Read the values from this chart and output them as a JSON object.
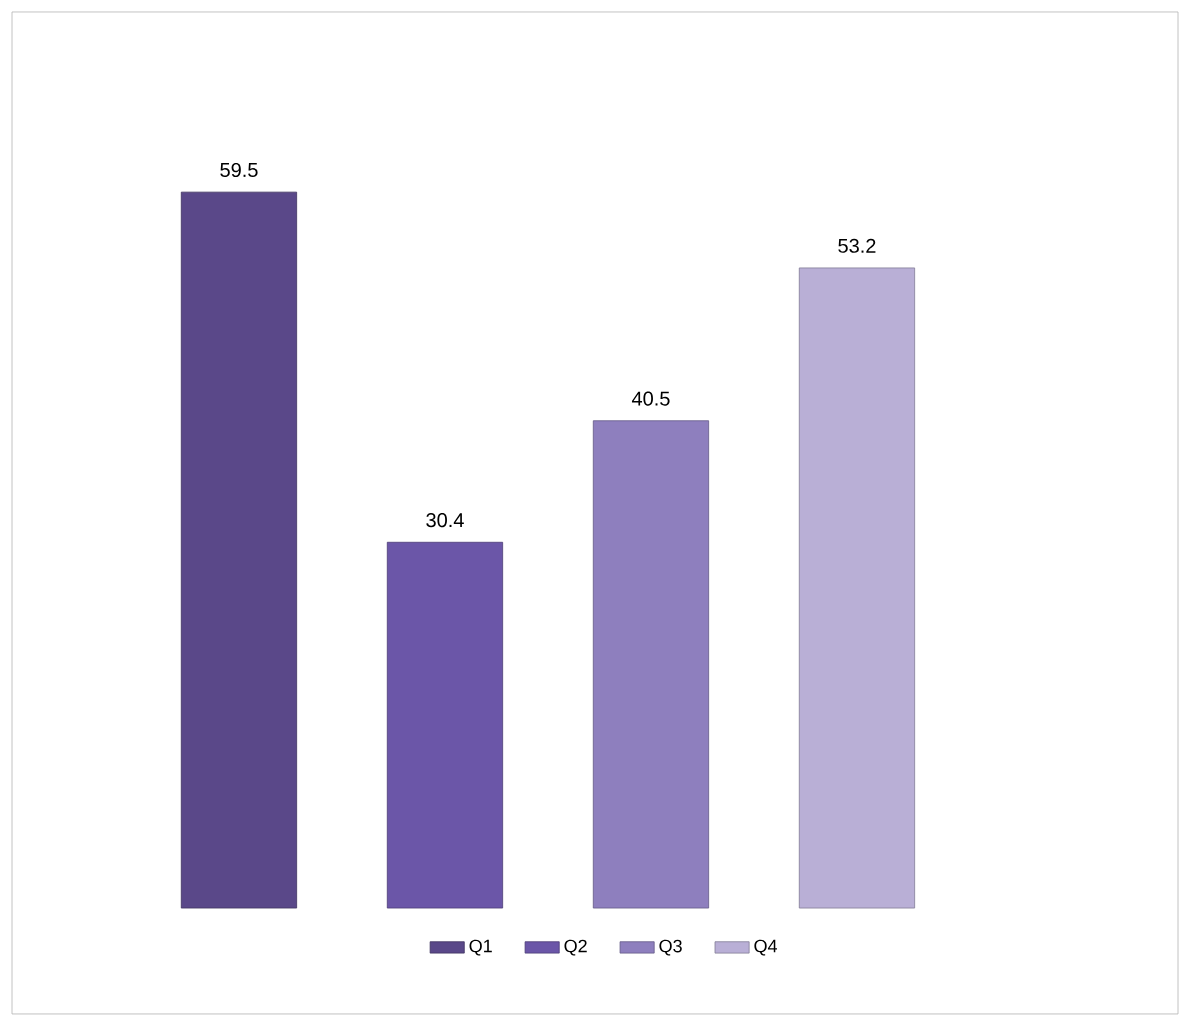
{
  "chart_data": {
    "type": "bar",
    "categories": [
      null,
      null,
      null,
      null
    ],
    "series": [
      {
        "name": "Q1",
        "color": "#5a4889",
        "values": [
          59.5,
          null,
          null,
          null
        ]
      },
      {
        "name": "Q2",
        "color": "#6b56a8",
        "values": [
          null,
          30.4,
          null,
          null
        ]
      },
      {
        "name": "Q3",
        "color": "#8e7fbe",
        "values": [
          null,
          null,
          40.5,
          null
        ]
      },
      {
        "name": "Q4",
        "color": "#b9afd6",
        "values": [
          null,
          null,
          null,
          53.2
        ]
      }
    ],
    "stacked": true,
    "data_labels": true,
    "legend": "bottom"
  }
}
